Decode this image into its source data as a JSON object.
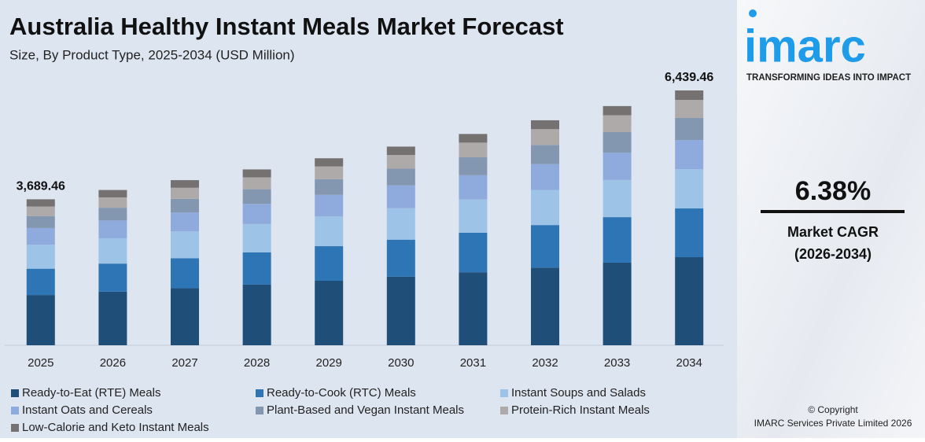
{
  "chart_data": {
    "type": "stacked-bar",
    "title": "Australia Healthy Instant Meals Market Forecast",
    "subtitle": "Size, By Product Type, 2025-2034 (USD Million)",
    "categories": [
      "2025",
      "2026",
      "2027",
      "2028",
      "2029",
      "2030",
      "2031",
      "2032",
      "2033",
      "2034"
    ],
    "series": [
      {
        "name": "Ready-to-Eat (RTE) Meals",
        "color": "#1f4e79",
        "values": [
          1270,
          1354,
          1440,
          1532,
          1630,
          1734,
          1845,
          1963,
          2088,
          2226
        ]
      },
      {
        "name": "Ready-to-Cook (RTC) Meals",
        "color": "#2e75b6",
        "values": [
          665,
          710,
          760,
          817,
          874,
          935,
          1000,
          1075,
          1150,
          1232
        ]
      },
      {
        "name": "Instant Soups and Salads",
        "color": "#9dc3e6",
        "values": [
          605,
          640,
          676,
          715,
          756,
          794,
          840,
          888,
          938,
          994
        ]
      },
      {
        "name": "Instant Oats and Cereals",
        "color": "#8faadc",
        "values": [
          423,
          449,
          478,
          509,
          541,
          576,
          612,
          652,
          693,
          735
        ]
      },
      {
        "name": "Plant-Based and Vegan Instant Meals",
        "color": "#8497b0",
        "values": [
          302,
          323,
          346,
          370,
          396,
          423,
          453,
          484,
          518,
          557
        ]
      },
      {
        "name": "Protein-Rich Instant Meals",
        "color": "#aeaaaa",
        "values": [
          242,
          261,
          280,
          301,
          322,
          346,
          371,
          398,
          426,
          457
        ]
      },
      {
        "name": "Low-Calorie and Keto Instant Meals",
        "color": "#767171",
        "values": [
          182,
          187,
          193,
          200,
          207,
          213,
          219,
          226,
          232,
          239
        ]
      }
    ],
    "annotations": [
      {
        "x": "2025",
        "text": "3,689.46"
      },
      {
        "x": "2034",
        "text": "6,439.46"
      }
    ]
  },
  "brand": {
    "logo": "imarc",
    "tagline": "TRANSFORMING IDEAS INTO IMPACT",
    "cagr": "6.38%",
    "cagr_label": "Market CAGR",
    "cagr_period": "(2026-2034)",
    "copyright": "© Copyright",
    "company": "IMARC Services Private Limited 2026"
  }
}
